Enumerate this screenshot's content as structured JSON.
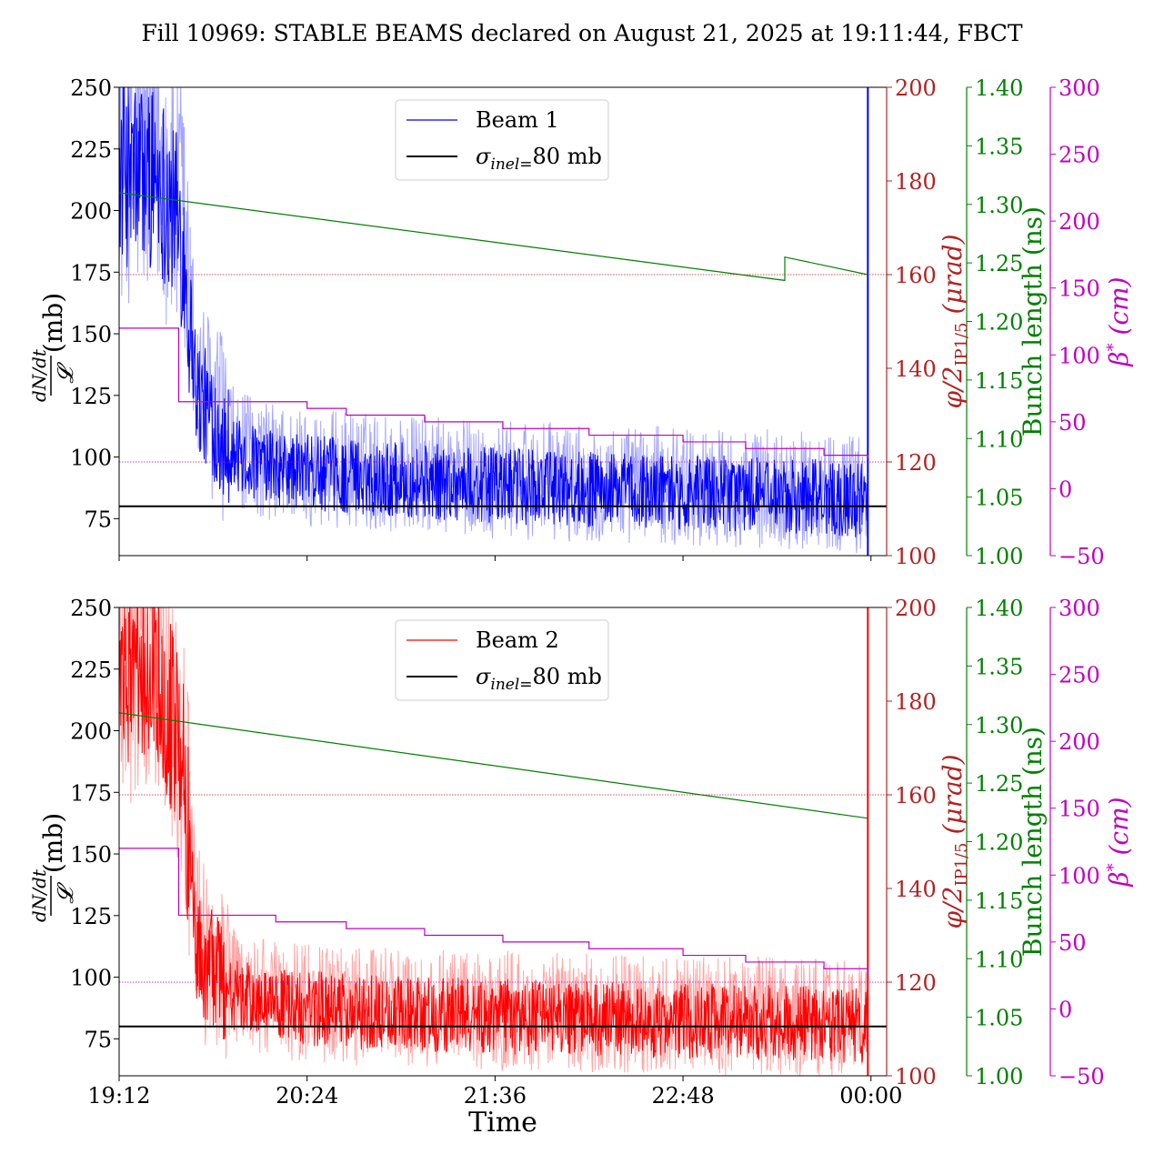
{
  "figure": {
    "title": "Fill 10969: STABLE BEAMS declared on August 21, 2025 at 19:11:44, FBCT",
    "xlabel": "Time",
    "xticks": [
      "19:12",
      "20:24",
      "21:36",
      "22:48",
      "00:00"
    ],
    "left_ylabel_main": "(mb)",
    "left_ylabel_num": "dN/dt",
    "left_ylabel_den": "𝓛",
    "right_axes": [
      {
        "name": "phi",
        "label": "φ/2IP1/5 (μrad)",
        "label_main": "φ/2",
        "label_sub": "IP1/5",
        "label_unit": "(μrad)",
        "color": "#b22222",
        "ylim": [
          100,
          200
        ],
        "ticks": [
          "100",
          "120",
          "140",
          "160",
          "180",
          "200"
        ]
      },
      {
        "name": "bunch",
        "label": "Bunch length (ns)",
        "color": "#008000",
        "ylim": [
          1.0,
          1.4
        ],
        "ticks": [
          "1.00",
          "1.05",
          "1.10",
          "1.15",
          "1.20",
          "1.25",
          "1.30",
          "1.35",
          "1.40"
        ]
      },
      {
        "name": "beta",
        "label": "β* (cm)",
        "label_main": "β",
        "label_sup": "*",
        "label_unit": "(cm)",
        "color": "#c000c0",
        "ylim": [
          -50,
          300
        ],
        "ticks": [
          "−50",
          "0",
          "50",
          "100",
          "150",
          "200",
          "250",
          "300"
        ]
      }
    ],
    "left_ticks": [
      "75",
      "100",
      "125",
      "150",
      "175",
      "200",
      "225",
      "250"
    ]
  },
  "chart_data": [
    {
      "type": "line",
      "panel": "top",
      "legend_position": "upper-center",
      "x_unit": "hours after 19:12",
      "xlim": [
        -0.0,
        4.9
      ],
      "ylim": [
        60,
        250
      ],
      "series": [
        {
          "name": "Beam 1",
          "axis": "left",
          "color": "#0000ff",
          "x": [
            0,
            0.25,
            0.4,
            0.5,
            0.75,
            1.0,
            1.5,
            2.0,
            2.5,
            3.0,
            3.5,
            4.0,
            4.5,
            4.78
          ],
          "y": [
            215,
            215,
            190,
            125,
            100,
            95,
            92,
            90,
            88,
            87,
            86,
            85,
            84,
            82
          ]
        },
        {
          "name": "σinel=80 mb",
          "axis": "left",
          "color": "#000000",
          "y_const": 80
        },
        {
          "name": "bunch length",
          "axis": "bunch",
          "color": "#008000",
          "x": [
            0,
            4.25,
            4.25,
            4.78
          ],
          "y": [
            1.31,
            1.235,
            1.255,
            1.24
          ]
        },
        {
          "name": "beta*",
          "axis": "beta",
          "color": "#c000c0",
          "x": [
            0,
            0.32,
            0.38,
            0.6,
            1.2,
            1.45,
            1.95,
            2.45,
            3.0,
            3.6,
            4.0,
            4.5,
            4.78
          ],
          "y": [
            120,
            120,
            65,
            65,
            60,
            55,
            50,
            45,
            40,
            35,
            30,
            25,
            23
          ]
        },
        {
          "name": "phi reference",
          "axis": "phi",
          "color": "#b22222",
          "y_const": 160
        },
        {
          "name": "beta reference",
          "axis": "beta",
          "color": "#c000c0",
          "y_const": 20
        }
      ]
    },
    {
      "type": "line",
      "panel": "bottom",
      "legend_position": "upper-center",
      "x_unit": "hours after 19:12",
      "xlim": [
        -0.0,
        4.9
      ],
      "ylim": [
        60,
        250
      ],
      "series": [
        {
          "name": "Beam 2",
          "axis": "left",
          "color": "#ff0000",
          "x": [
            0,
            0.25,
            0.4,
            0.5,
            0.75,
            1.0,
            1.5,
            2.0,
            2.5,
            3.0,
            3.5,
            4.0,
            4.5,
            4.78
          ],
          "y": [
            220,
            225,
            190,
            110,
            92,
            88,
            86,
            85,
            84,
            83,
            82,
            82,
            81,
            80
          ]
        },
        {
          "name": "σinel=80 mb",
          "axis": "left",
          "color": "#000000",
          "y_const": 80
        },
        {
          "name": "bunch length",
          "axis": "bunch",
          "color": "#008000",
          "x": [
            0,
            4.78
          ],
          "y": [
            1.31,
            1.22
          ]
        },
        {
          "name": "beta*",
          "axis": "beta",
          "color": "#c000c0",
          "x": [
            0,
            0.32,
            0.38,
            0.6,
            1.0,
            1.45,
            1.95,
            2.45,
            3.0,
            3.6,
            4.0,
            4.5,
            4.78
          ],
          "y": [
            120,
            120,
            70,
            70,
            65,
            60,
            55,
            50,
            45,
            40,
            35,
            30,
            25
          ]
        },
        {
          "name": "phi reference",
          "axis": "phi",
          "color": "#b22222",
          "y_const": 160
        },
        {
          "name": "beta reference",
          "axis": "beta",
          "color": "#c000c0",
          "y_const": 20
        }
      ]
    }
  ]
}
